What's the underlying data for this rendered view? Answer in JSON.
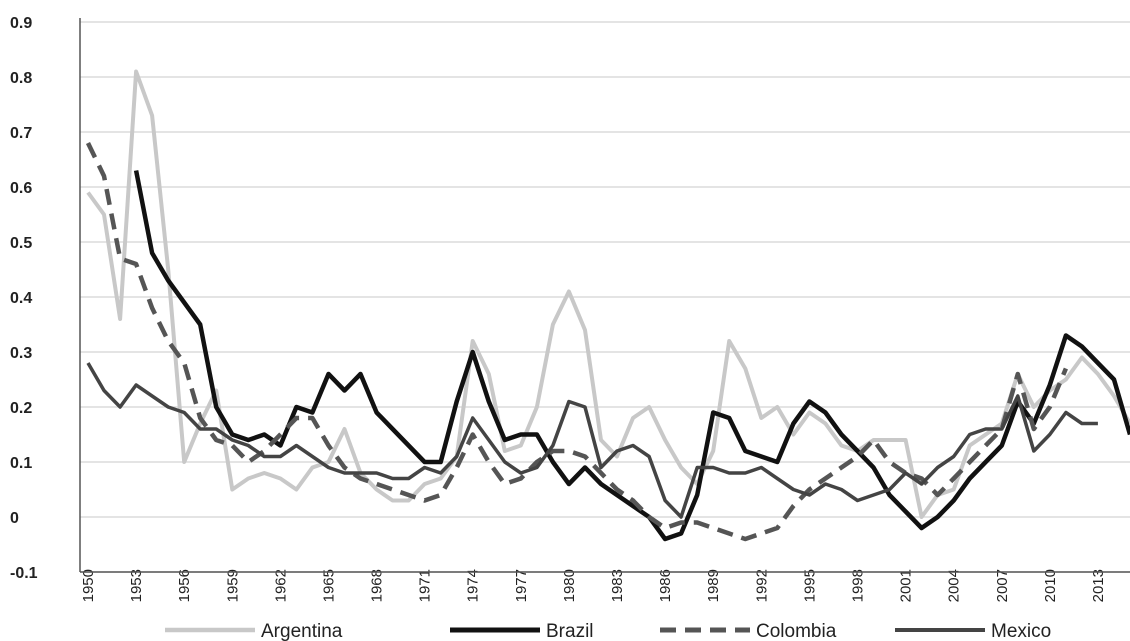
{
  "chart_data": {
    "type": "line",
    "title": "",
    "xlabel": "",
    "ylabel": "",
    "xlim": [
      1950,
      2015
    ],
    "ylim": [
      -0.1,
      0.9
    ],
    "yticks": [
      "0.9",
      "0.8",
      "0.7",
      "0.6",
      "0.5",
      "0.4",
      "0.3",
      "0.2",
      "0.1",
      "0",
      "-0.1"
    ],
    "xticks": [
      "1950",
      "1953",
      "1956",
      "1959",
      "1962",
      "1965",
      "1968",
      "1971",
      "1974",
      "1977",
      "1980",
      "1983",
      "1986",
      "1989",
      "1992",
      "1995",
      "1998",
      "2001",
      "2004",
      "2007",
      "2010",
      "2013"
    ],
    "grid": "horizontal",
    "legend_position": "bottom",
    "series": [
      {
        "name": "Argentina",
        "color": "#c8c8c8",
        "dash": "solid",
        "width": 4,
        "x": [
          1950,
          1951,
          1952,
          1953,
          1954,
          1955,
          1956,
          1957,
          1958,
          1959,
          1960,
          1961,
          1962,
          1963,
          1964,
          1965,
          1966,
          1967,
          1968,
          1969,
          1970,
          1971,
          1972,
          1973,
          1974,
          1975,
          1976,
          1977,
          1978,
          1979,
          1980,
          1981,
          1982,
          1983,
          1984,
          1985,
          1986,
          1987,
          1988,
          1989,
          1990,
          1991,
          1992,
          1993,
          1994,
          1995,
          1996,
          1997,
          1998,
          1999,
          2000,
          2001,
          2002,
          2003,
          2004,
          2005,
          2006,
          2007,
          2008,
          2009,
          2010,
          2011,
          2012,
          2013,
          2014,
          2015
        ],
        "values": [
          0.59,
          0.55,
          0.36,
          0.81,
          0.73,
          0.45,
          0.1,
          0.17,
          0.23,
          0.05,
          0.07,
          0.08,
          0.07,
          0.05,
          0.09,
          0.1,
          0.16,
          0.08,
          0.05,
          0.03,
          0.03,
          0.06,
          0.07,
          0.11,
          0.32,
          0.26,
          0.12,
          0.13,
          0.2,
          0.35,
          0.41,
          0.34,
          0.14,
          0.11,
          0.18,
          0.2,
          0.14,
          0.09,
          0.06,
          0.12,
          0.32,
          0.27,
          0.18,
          0.2,
          0.15,
          0.19,
          0.17,
          0.13,
          0.12,
          0.14,
          0.14,
          0.14,
          0.0,
          0.04,
          0.05,
          0.13,
          0.15,
          0.17,
          0.26,
          0.2,
          0.23,
          0.25,
          0.29,
          0.26,
          0.22,
          0.17
        ]
      },
      {
        "name": "Brazil",
        "color": "#111111",
        "dash": "solid",
        "width": 4.5,
        "x": [
          1953,
          1954,
          1955,
          1956,
          1957,
          1958,
          1959,
          1960,
          1961,
          1962,
          1963,
          1964,
          1965,
          1966,
          1967,
          1968,
          1969,
          1970,
          1971,
          1972,
          1973,
          1974,
          1975,
          1976,
          1977,
          1978,
          1979,
          1980,
          1981,
          1982,
          1983,
          1984,
          1985,
          1986,
          1987,
          1988,
          1989,
          1990,
          1991,
          1992,
          1993,
          1994,
          1995,
          1996,
          1997,
          1998,
          1999,
          2000,
          2001,
          2002,
          2003,
          2004,
          2005,
          2006,
          2007,
          2008,
          2009,
          2010,
          2011,
          2012,
          2013,
          2014,
          2015
        ],
        "values": [
          0.63,
          0.48,
          0.43,
          0.39,
          0.35,
          0.2,
          0.15,
          0.14,
          0.15,
          0.13,
          0.2,
          0.19,
          0.26,
          0.23,
          0.26,
          0.19,
          0.16,
          0.13,
          0.1,
          0.1,
          0.21,
          0.3,
          0.21,
          0.14,
          0.15,
          0.15,
          0.1,
          0.06,
          0.09,
          0.06,
          0.04,
          0.02,
          0.0,
          -0.04,
          -0.03,
          0.04,
          0.19,
          0.18,
          0.12,
          0.11,
          0.1,
          0.17,
          0.21,
          0.19,
          0.15,
          0.12,
          0.09,
          0.04,
          0.01,
          -0.02,
          0.0,
          0.03,
          0.07,
          0.1,
          0.13,
          0.21,
          0.17,
          0.24,
          0.33,
          0.31,
          0.28,
          0.25,
          0.15
        ]
      },
      {
        "name": "Colombia",
        "color": "#555555",
        "dash": "dashed",
        "width": 4.5,
        "x": [
          1950,
          1951,
          1952,
          1953,
          1954,
          1955,
          1956,
          1957,
          1958,
          1959,
          1960,
          1961,
          1962,
          1963,
          1964,
          1965,
          1966,
          1967,
          1968,
          1969,
          1970,
          1971,
          1972,
          1973,
          1974,
          1975,
          1976,
          1977,
          1978,
          1979,
          1980,
          1981,
          1982,
          1983,
          1984,
          1985,
          1986,
          1987,
          1988,
          1989,
          1990,
          1991,
          1992,
          1993,
          1994,
          1995,
          1996,
          1997,
          1998,
          1999,
          2000,
          2001,
          2002,
          2003,
          2004,
          2005,
          2006,
          2007,
          2008,
          2009,
          2010,
          2011
        ],
        "values": [
          0.68,
          0.62,
          0.47,
          0.46,
          0.38,
          0.32,
          0.28,
          0.18,
          0.14,
          0.13,
          0.1,
          0.12,
          0.15,
          0.18,
          0.18,
          0.13,
          0.09,
          0.07,
          0.06,
          0.05,
          0.04,
          0.03,
          0.04,
          0.09,
          0.15,
          0.1,
          0.06,
          0.07,
          0.1,
          0.12,
          0.12,
          0.11,
          0.08,
          0.05,
          0.03,
          0.0,
          -0.02,
          -0.01,
          -0.01,
          -0.02,
          -0.03,
          -0.04,
          -0.03,
          -0.02,
          0.02,
          0.05,
          0.07,
          0.09,
          0.11,
          0.14,
          0.1,
          0.08,
          0.07,
          0.04,
          0.07,
          0.1,
          0.13,
          0.16,
          0.26,
          0.16,
          0.2,
          0.27
        ]
      },
      {
        "name": "Mexico",
        "color": "#444444",
        "dash": "solid",
        "width": 3.5,
        "x": [
          1950,
          1951,
          1952,
          1953,
          1954,
          1955,
          1956,
          1957,
          1958,
          1959,
          1960,
          1961,
          1962,
          1963,
          1964,
          1965,
          1966,
          1967,
          1968,
          1969,
          1970,
          1971,
          1972,
          1973,
          1974,
          1975,
          1976,
          1977,
          1978,
          1979,
          1980,
          1981,
          1982,
          1983,
          1984,
          1985,
          1986,
          1987,
          1988,
          1989,
          1990,
          1991,
          1992,
          1993,
          1994,
          1995,
          1996,
          1997,
          1998,
          1999,
          2000,
          2001,
          2002,
          2003,
          2004,
          2005,
          2006,
          2007,
          2008,
          2009,
          2010,
          2011,
          2012,
          2013
        ],
        "values": [
          0.28,
          0.23,
          0.2,
          0.24,
          0.22,
          0.2,
          0.19,
          0.16,
          0.16,
          0.14,
          0.13,
          0.11,
          0.11,
          0.13,
          0.11,
          0.09,
          0.08,
          0.08,
          0.08,
          0.07,
          0.07,
          0.09,
          0.08,
          0.11,
          0.18,
          0.14,
          0.1,
          0.08,
          0.09,
          0.13,
          0.21,
          0.2,
          0.09,
          0.12,
          0.13,
          0.11,
          0.03,
          0.0,
          0.09,
          0.09,
          0.08,
          0.08,
          0.09,
          0.07,
          0.05,
          0.04,
          0.06,
          0.05,
          0.03,
          0.04,
          0.05,
          0.08,
          0.06,
          0.09,
          0.11,
          0.15,
          0.16,
          0.16,
          0.22,
          0.12,
          0.15,
          0.19,
          0.17,
          0.17
        ]
      }
    ]
  }
}
